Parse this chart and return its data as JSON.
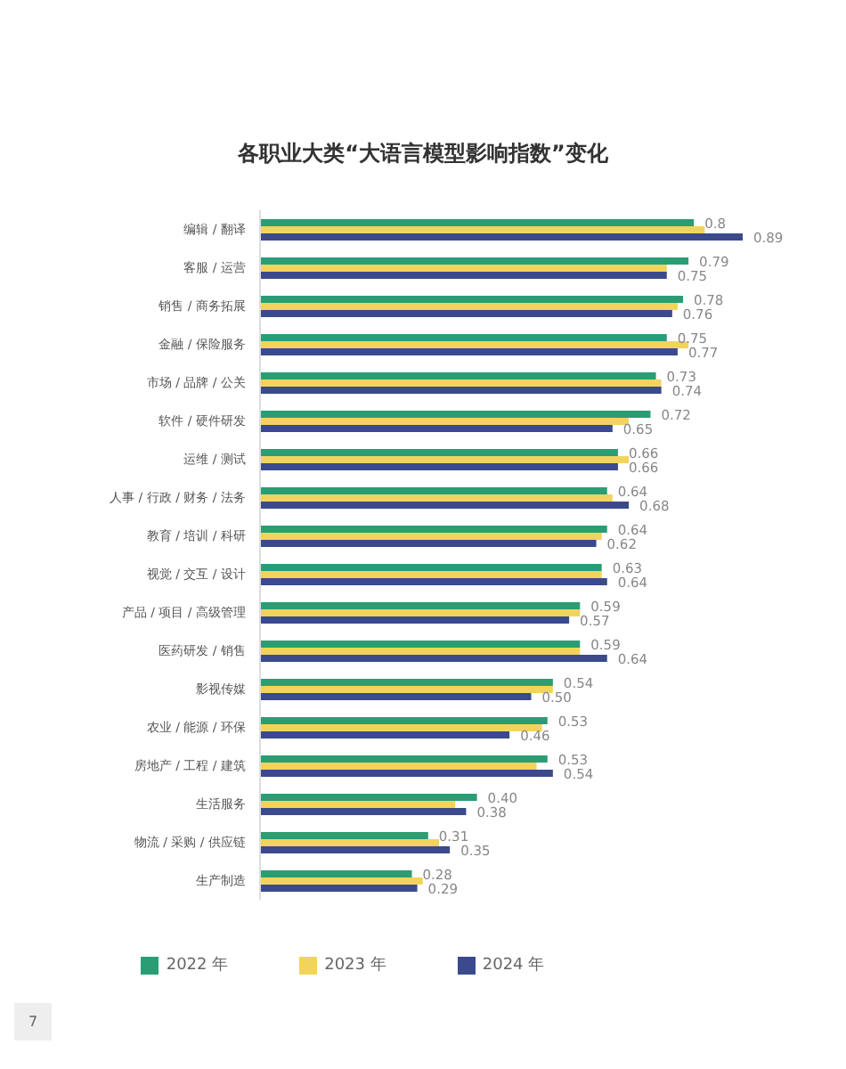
{
  "chart_data": {
    "type": "bar",
    "orientation": "horizontal",
    "title": "各职业大类“大语言模型影响指数”变化",
    "categories": [
      "编辑 / 翻译",
      "客服 / 运营",
      "销售 / 商务拓展",
      "金融 / 保险服务",
      "市场 / 品牌 / 公关",
      "软件 / 硬件研发",
      "运维 / 测试",
      "人事 / 行政 / 财务 / 法务",
      "教育 / 培训 / 科研",
      "视觉 / 交互 / 设计",
      "产品 / 项目 / 高级管理",
      "医药研发 / 销售",
      "影视传媒",
      "农业 / 能源 / 环保",
      "房地产 / 工程 / 建筑",
      "生活服务",
      "物流 / 采购 / 供应链",
      "生产制造"
    ],
    "series": [
      {
        "name": "2022 年",
        "color": "#2a9d74",
        "values": [
          0.8,
          0.79,
          0.78,
          0.75,
          0.73,
          0.72,
          0.66,
          0.64,
          0.64,
          0.63,
          0.59,
          0.59,
          0.54,
          0.53,
          0.53,
          0.4,
          0.31,
          0.28
        ],
        "value_labels": [
          "0.8",
          "0.79",
          "0.78",
          "0.75",
          "0.73",
          "0.72",
          "0.66",
          "0.64",
          "0.64",
          "0.63",
          "0.59",
          "0.59",
          "0.54",
          "0.53",
          "0.53",
          "0.40",
          "0.31",
          "0.28"
        ]
      },
      {
        "name": "2023 年",
        "color": "#f2d45c",
        "values": [
          0.82,
          0.75,
          0.77,
          0.79,
          0.74,
          0.68,
          0.68,
          0.65,
          0.63,
          0.63,
          0.59,
          0.59,
          0.54,
          0.52,
          0.51,
          0.36,
          0.33,
          0.3
        ]
      },
      {
        "name": "2024 年",
        "color": "#3a4a8c",
        "values": [
          0.89,
          0.75,
          0.76,
          0.77,
          0.74,
          0.65,
          0.66,
          0.68,
          0.62,
          0.64,
          0.57,
          0.64,
          0.5,
          0.46,
          0.54,
          0.38,
          0.35,
          0.29
        ],
        "value_labels": [
          "0.89",
          "0.75",
          "0.76",
          "0.77",
          "0.74",
          "0.65",
          "0.66",
          "0.68",
          "0.62",
          "0.64",
          "0.57",
          "0.64",
          "0.50",
          "0.46",
          "0.54",
          "0.38",
          "0.35",
          "0.29"
        ]
      }
    ],
    "tick_labels": "y",
    "legend": "bottom",
    "annotations": [
      "7"
    ]
  }
}
